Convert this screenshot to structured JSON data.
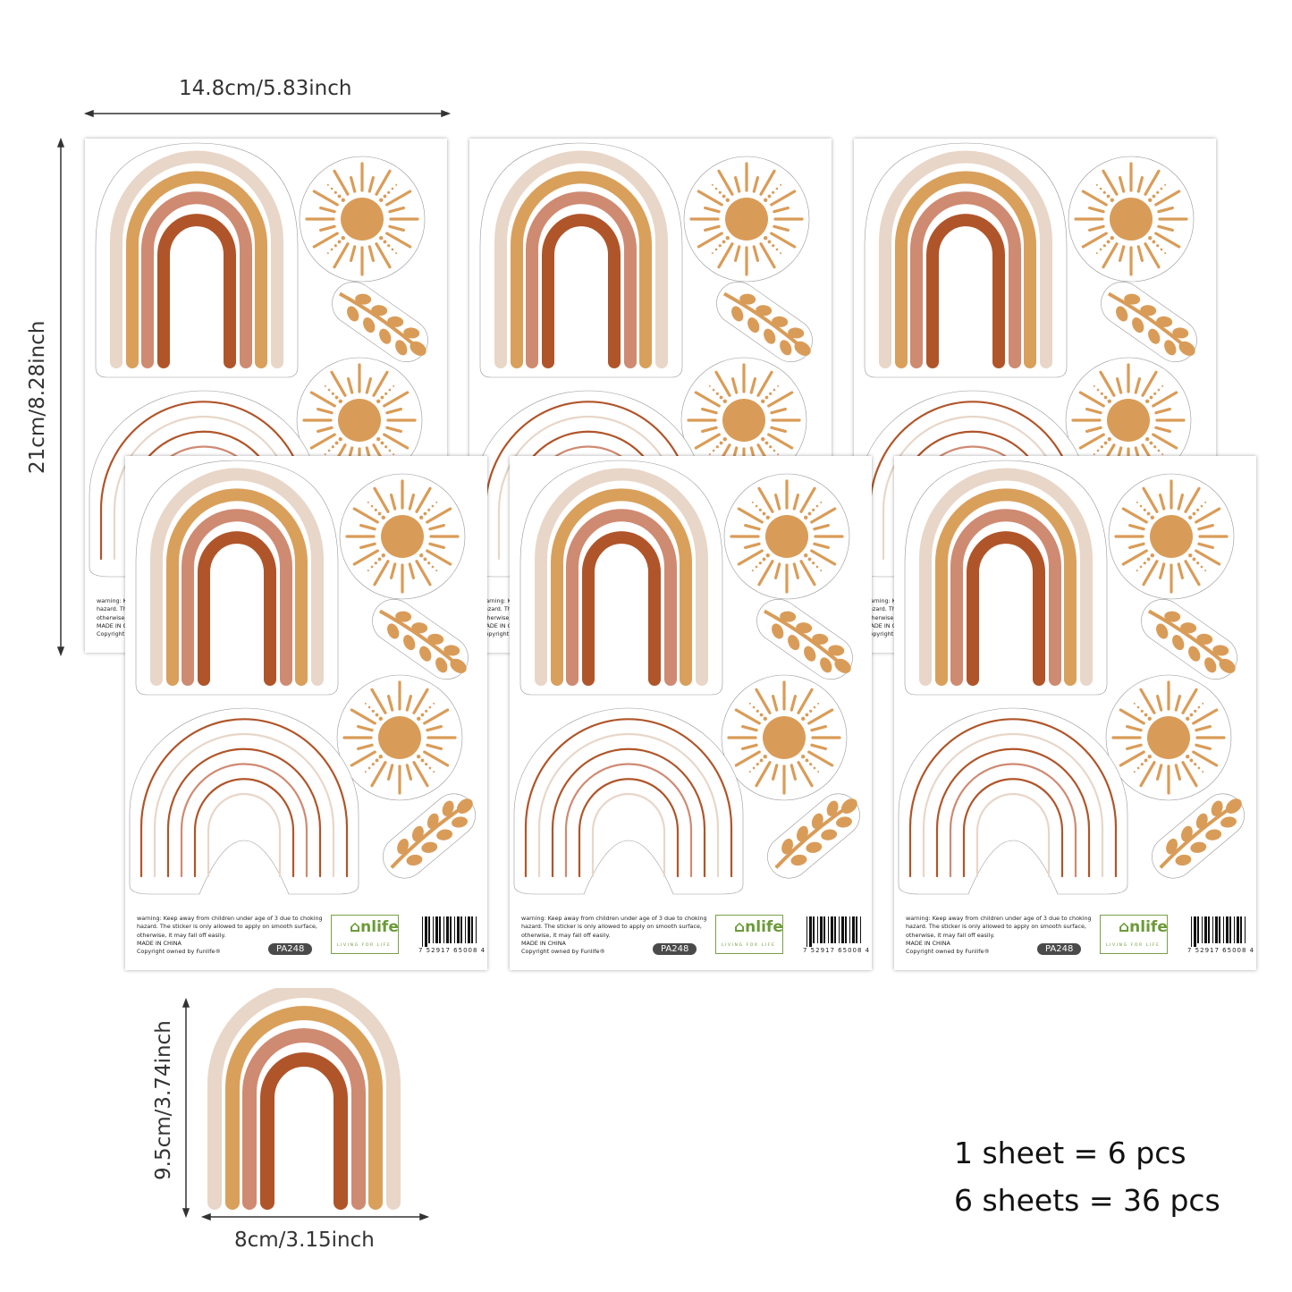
{
  "dimensions": {
    "sheet_width": "14.8cm/5.83inch",
    "sheet_height": "21cm/8.28inch",
    "sticker_height": "9.5cm/3.74inch",
    "sticker_width": "8cm/3.15inch"
  },
  "sheet": {
    "warning": "warning: Keep away from children under age of 3 due to choking hazard. The sticker is only allowed to apply on smooth surface, otherwise, it may fall off easily.",
    "made_in": "MADE IN CHINA",
    "copyright": "Copyright owned by Funlife®",
    "product_code": "PA248",
    "brand": "⌂nlife",
    "brand_tagline": "LIVING FOR LIFE",
    "barcode": "7  52917  65008  4"
  },
  "quantity": {
    "per_sheet": "1 sheet = 6 pcs",
    "total": "6 sheets = 36 pcs"
  },
  "colors": {
    "light": "#e8d6c8",
    "tan": "#d9a05c",
    "pink": "#cf8a72",
    "brown": "#b0552a",
    "sun": "#d99c58"
  }
}
